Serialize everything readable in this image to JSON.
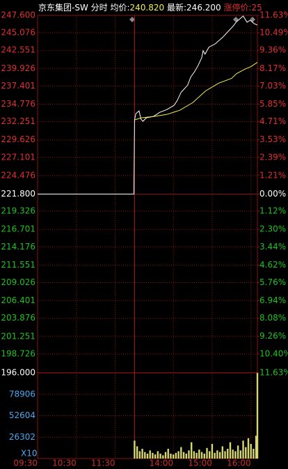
{
  "chart_data": [
    {
      "type": "line",
      "title": "京东集团-SW",
      "subtitle": "分时",
      "avg_label": "均价:",
      "avg_price": "240.820",
      "last_label": "最新:",
      "last_price": "246.200",
      "limit_label": "涨停价:25",
      "xlim": [
        0,
        340
      ],
      "xticks": [
        {
          "value": 0,
          "label": "09:30"
        },
        {
          "value": 60,
          "label": "10:30"
        },
        {
          "value": 120,
          "label": "11:30"
        },
        {
          "value": 210,
          "label": "14:00"
        },
        {
          "value": 270,
          "label": "15:00"
        },
        {
          "value": 330,
          "label": "16:00"
        }
      ],
      "session_break": 150,
      "ylim": [
        196,
        247.6
      ],
      "yticks": [
        {
          "value": 247.6,
          "label": "247.600"
        },
        {
          "value": 245.076,
          "label": "245.076"
        },
        {
          "value": 242.551,
          "label": "242.551"
        },
        {
          "value": 239.926,
          "label": "239.926"
        },
        {
          "value": 237.401,
          "label": "237.401"
        },
        {
          "value": 234.776,
          "label": "234.776"
        },
        {
          "value": 232.251,
          "label": "232.251"
        },
        {
          "value": 229.626,
          "label": "229.626"
        },
        {
          "value": 227.101,
          "label": "227.101"
        },
        {
          "value": 224.476,
          "label": "224.476"
        },
        {
          "value": 221.8,
          "label": "221.800"
        },
        {
          "value": 219.326,
          "label": "219.326"
        },
        {
          "value": 216.701,
          "label": "216.701"
        },
        {
          "value": 214.176,
          "label": "214.176"
        },
        {
          "value": 211.551,
          "label": "211.551"
        },
        {
          "value": 209.026,
          "label": "209.026"
        },
        {
          "value": 206.401,
          "label": "206.401"
        },
        {
          "value": 203.876,
          "label": "203.876"
        },
        {
          "value": 201.251,
          "label": "201.251"
        },
        {
          "value": 198.726,
          "label": "198.726"
        },
        {
          "value": 196,
          "label": "196.000"
        }
      ],
      "y2lim": [
        -11.63,
        11.63
      ],
      "y2ticks": [
        {
          "value": 11.63,
          "label": "11.63%"
        },
        {
          "value": 10.49,
          "label": "10.49%"
        },
        {
          "value": 9.36,
          "label": "9.36%"
        },
        {
          "value": 8.17,
          "label": "8.17%"
        },
        {
          "value": 7.03,
          "label": "7.03%"
        },
        {
          "value": 5.85,
          "label": "5.85%"
        },
        {
          "value": 4.71,
          "label": "4.71%"
        },
        {
          "value": 3.53,
          "label": "3.53%"
        },
        {
          "value": 2.39,
          "label": "2.39%"
        },
        {
          "value": 1.21,
          "label": "1.21%"
        },
        {
          "value": 0,
          "label": "0.00%"
        },
        {
          "value": -1.12,
          "label": "1.12%"
        },
        {
          "value": -2.3,
          "label": "2.30%"
        },
        {
          "value": -3.44,
          "label": "3.44%"
        },
        {
          "value": -4.62,
          "label": "4.62%"
        },
        {
          "value": -5.76,
          "label": "5.76%"
        },
        {
          "value": -6.94,
          "label": "6.94%"
        },
        {
          "value": -8.08,
          "label": "8.08%"
        },
        {
          "value": -9.26,
          "label": "9.26%"
        },
        {
          "value": -10.4,
          "label": "10.40%"
        },
        {
          "value": -11.63,
          "label": "11.63%"
        }
      ],
      "grid": true,
      "series": [
        {
          "color": "#ffffff",
          "x": [
            0,
            149,
            150,
            152,
            157,
            160,
            163,
            168,
            179,
            189,
            200,
            211,
            216,
            222,
            232,
            237,
            243,
            248,
            254,
            256,
            259,
            265,
            275,
            286,
            297,
            302,
            308,
            313,
            318,
            324,
            329,
            335,
            340
          ],
          "values": [
            221.8,
            221.8,
            232.5,
            233.4,
            233.8,
            232.6,
            232.3,
            232.8,
            233.0,
            233.6,
            234.0,
            234.6,
            235.3,
            236.5,
            237.5,
            238.7,
            239.5,
            240.3,
            241.5,
            242.5,
            242.0,
            243.0,
            243.5,
            244.4,
            245.5,
            246.0,
            246.7,
            247.1,
            247.5,
            246.6,
            246.9,
            246.4,
            246.2
          ]
        },
        {
          "color": "#f0f050",
          "x": [
            150,
            160,
            180,
            200,
            220,
            240,
            260,
            280,
            300,
            308,
            320,
            330,
            340
          ],
          "values": [
            232.5,
            232.8,
            233.0,
            233.3,
            233.9,
            235.0,
            236.7,
            237.8,
            238.5,
            239.2,
            239.8,
            240.2,
            240.82
          ]
        }
      ]
    },
    {
      "type": "bar",
      "unit_label": "X10",
      "xlim": [
        0,
        340
      ],
      "ylim": [
        0,
        105208
      ],
      "yticks": [
        78906,
        52604,
        26302
      ],
      "color": "#d8d870",
      "x": [
        150,
        154,
        158,
        162,
        166,
        170,
        174,
        178,
        182,
        186,
        190,
        194,
        198,
        202,
        206,
        210,
        214,
        218,
        222,
        226,
        230,
        234,
        238,
        242,
        246,
        250,
        254,
        258,
        262,
        266,
        270,
        274,
        278,
        282,
        286,
        290,
        294,
        298,
        302,
        306,
        310,
        314,
        318,
        322,
        326,
        330,
        334,
        338,
        340
      ],
      "values": [
        22000,
        15000,
        9000,
        12000,
        8000,
        6000,
        10000,
        7000,
        5000,
        9000,
        6000,
        4000,
        8000,
        12000,
        6000,
        5000,
        7000,
        9000,
        14000,
        8000,
        6000,
        10000,
        20000,
        9000,
        7000,
        11000,
        8000,
        6000,
        13000,
        9000,
        18000,
        7000,
        10000,
        8000,
        15000,
        9000,
        12000,
        20000,
        11000,
        9000,
        16000,
        10000,
        22000,
        14000,
        25000,
        18000,
        12000,
        28000,
        105000
      ]
    }
  ]
}
